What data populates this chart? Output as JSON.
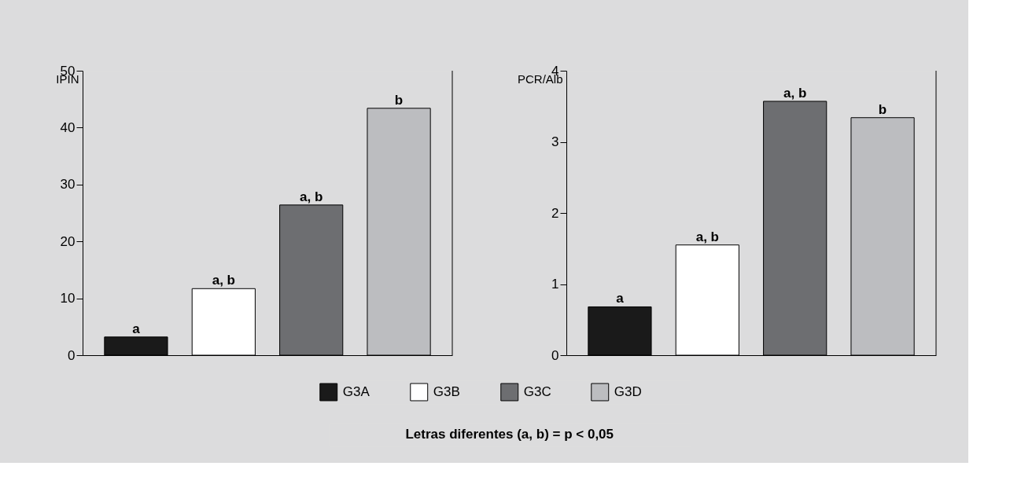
{
  "chart_data": [
    {
      "type": "bar",
      "ylabel": "IPIN",
      "categories": [
        null
      ],
      "ylim": [
        0,
        50
      ],
      "yticks": [
        0,
        10,
        20,
        30,
        40,
        50
      ],
      "legend": "bottom",
      "annotations": [
        "Letras diferentes (a, b) = p < 0,05"
      ],
      "series": [
        {
          "name": "G3A",
          "color": "#1a1a1a",
          "values": [
            3.2
          ],
          "value_labels": [
            "a"
          ]
        },
        {
          "name": "G3B",
          "color": "#ffffff",
          "values": [
            11.7
          ],
          "value_labels": [
            "a, b"
          ]
        },
        {
          "name": "G3C",
          "color": "#6d6e71",
          "values": [
            26.4
          ],
          "value_labels": [
            "a, b"
          ]
        },
        {
          "name": "G3D",
          "color": "#bcbdc0",
          "values": [
            43.4
          ],
          "value_labels": [
            "b"
          ]
        }
      ]
    },
    {
      "type": "bar",
      "ylabel": "PCR/Alb",
      "categories": [
        null
      ],
      "ylim": [
        0,
        4
      ],
      "yticks": [
        0,
        1,
        2,
        3,
        4
      ],
      "series": [
        {
          "color": "#1a1a1a",
          "values": [
            0.68
          ],
          "value_labels": [
            "a"
          ]
        },
        {
          "color": "#ffffff",
          "values": [
            1.55
          ],
          "value_labels": [
            "a, b"
          ]
        },
        {
          "color": "#6d6e71",
          "values": [
            3.57
          ],
          "value_labels": [
            "a, b"
          ]
        },
        {
          "color": "#bcbdc0",
          "values": [
            3.34
          ],
          "value_labels": [
            "b"
          ]
        }
      ]
    }
  ]
}
